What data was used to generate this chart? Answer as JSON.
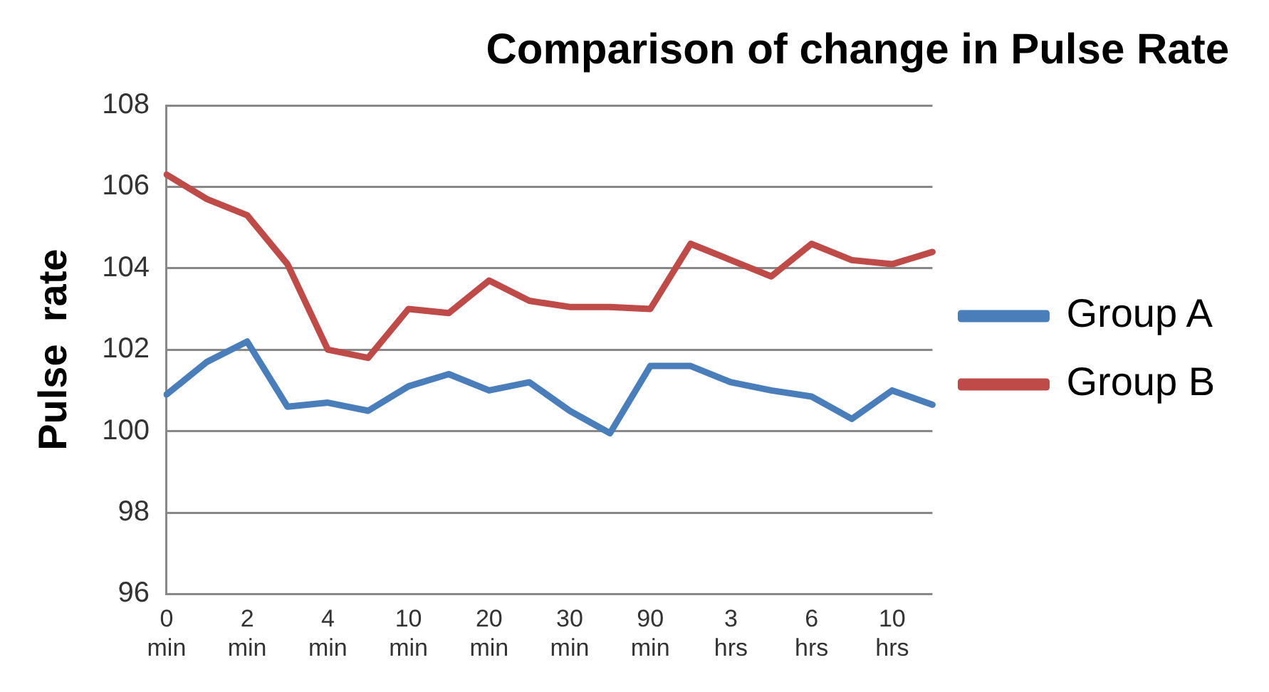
{
  "chart_data": {
    "type": "line",
    "title": "Comparison of change in Pulse Rate",
    "ylabel": "Pulse  rate",
    "categories": [
      "0 min",
      null,
      "2 min",
      null,
      "4 min",
      null,
      "10 min",
      null,
      "20 min",
      null,
      "30 min",
      null,
      "90 min",
      null,
      "3 hrs",
      null,
      "6 hrs",
      null,
      "10 hrs",
      null
    ],
    "series": [
      {
        "name": "Group A",
        "color": "#4a7ebb",
        "values": [
          100.9,
          101.7,
          102.2,
          100.6,
          100.7,
          100.5,
          101.1,
          101.4,
          101.0,
          101.2,
          100.5,
          99.95,
          101.6,
          101.6,
          101.2,
          101.0,
          100.85,
          100.3,
          101.0,
          100.65
        ]
      },
      {
        "name": "Group B",
        "color": "#be4b48",
        "values": [
          106.3,
          105.7,
          105.3,
          104.1,
          102.0,
          101.8,
          103.0,
          102.9,
          103.7,
          103.2,
          103.05,
          103.05,
          103.0,
          104.6,
          104.2,
          103.8,
          104.6,
          104.2,
          104.1,
          104.4
        ]
      }
    ],
    "ylim": [
      96,
      108
    ],
    "yticks": [
      96,
      98,
      100,
      102,
      104,
      106,
      108
    ],
    "grid": "y",
    "legend": "right",
    "marker": "none",
    "line_style": "solid"
  }
}
